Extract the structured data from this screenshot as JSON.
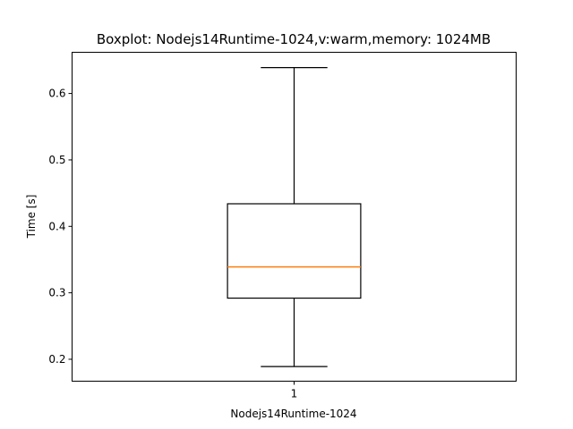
{
  "chart_data": {
    "type": "box",
    "title": "Boxplot: Nodejs14Runtime-1024,v:warm,memory: 1024MB",
    "xlabel": "Nodejs14Runtime-1024",
    "ylabel": "Time [s]",
    "ylim": [
      0.167,
      0.662
    ],
    "yticks": [
      0.2,
      0.3,
      0.4,
      0.5,
      0.6
    ],
    "ytick_labels": [
      "0.2",
      "0.3",
      "0.4",
      "0.5",
      "0.6"
    ],
    "xtick_labels": [
      "1"
    ],
    "grid": false,
    "boxes": [
      {
        "position": 1,
        "whisker_low": 0.189,
        "q1": 0.292,
        "median": 0.339,
        "q3": 0.434,
        "whisker_high": 0.639
      }
    ],
    "colors": {
      "box": "#000000",
      "median": "#ff7f0e"
    }
  }
}
